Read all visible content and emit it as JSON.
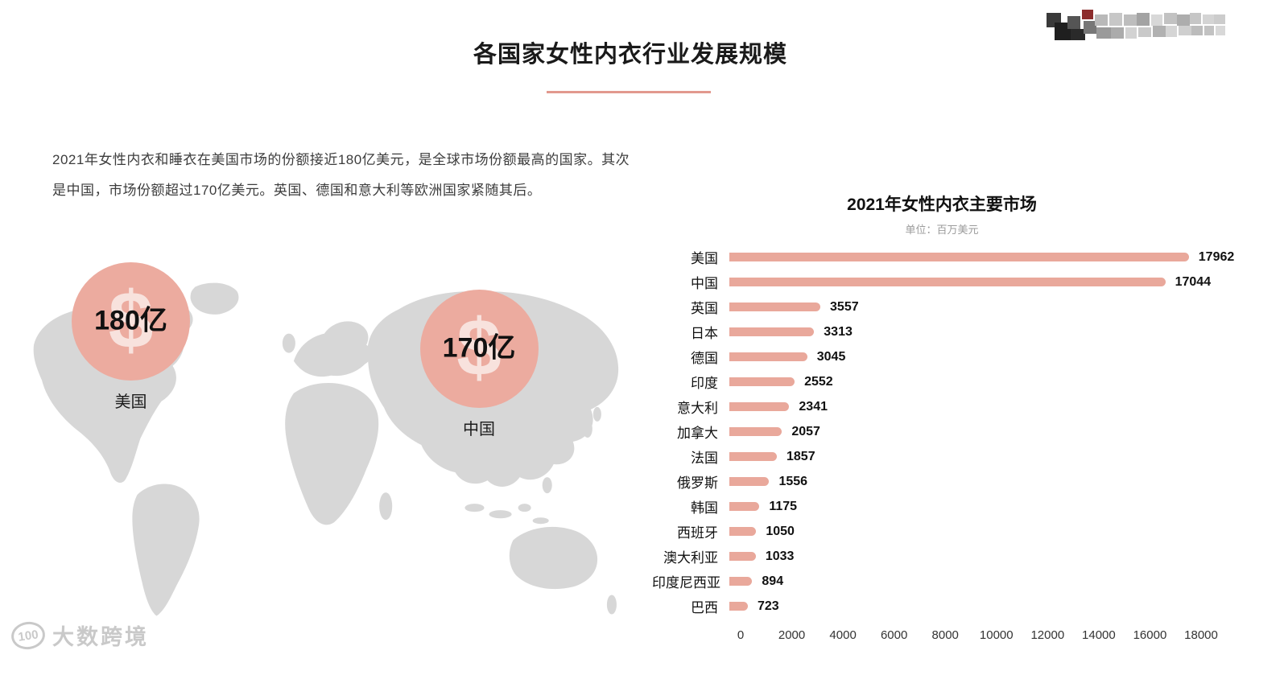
{
  "header": {
    "title": "各国家女性内衣行业发展规模"
  },
  "intro": {
    "text": "2021年女性内衣和睡衣在美国市场的份额接近180亿美元，是全球市场份额最高的国家。其次是中国，市场份额超过170亿美元。英国、德国和意大利等欧洲国家紧随其后。"
  },
  "map": {
    "markers": [
      {
        "value": "180亿",
        "label": "美国",
        "currency_symbol": "$"
      },
      {
        "value": "170亿",
        "label": "中国",
        "currency_symbol": "$"
      }
    ]
  },
  "chart_data": {
    "type": "bar",
    "orientation": "horizontal",
    "title": "2021年女性内衣主要市场",
    "unit_label": "单位：百万美元",
    "categories": [
      "美国",
      "中国",
      "英国",
      "日本",
      "德国",
      "印度",
      "意大利",
      "加拿大",
      "法国",
      "俄罗斯",
      "韩国",
      "西班牙",
      "澳大利亚",
      "印度尼西亚",
      "巴西"
    ],
    "values": [
      17962,
      17044,
      3557,
      3313,
      3045,
      2552,
      2341,
      2057,
      1857,
      1556,
      1175,
      1050,
      1033,
      894,
      723
    ],
    "xlim": [
      0,
      18000
    ],
    "x_ticks": [
      0,
      2000,
      4000,
      6000,
      8000,
      10000,
      12000,
      14000,
      16000,
      18000
    ],
    "bar_color": "#e9a89b",
    "grid": false,
    "legend": false
  },
  "watermark": {
    "badge": "100",
    "text": "大数跨境"
  },
  "colors": {
    "accent": "#e2998e",
    "bubble": "#ecab9f",
    "bar": "#e9a89b",
    "map_gray": "#d7d7d7",
    "watermark_gray": "#c9c9c9"
  }
}
